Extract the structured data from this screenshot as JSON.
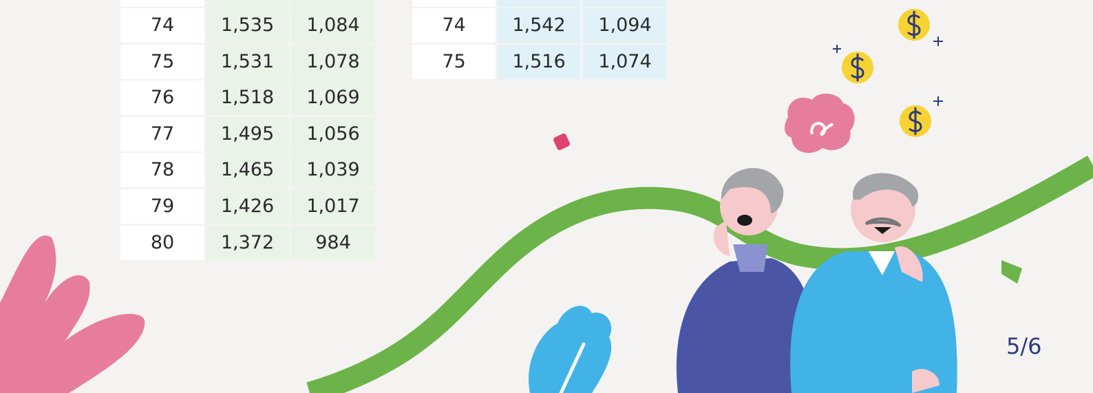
{
  "left_table": {
    "rows": [
      [
        "74",
        "1,535",
        "1,084"
      ],
      [
        "75",
        "1,531",
        "1,078"
      ],
      [
        "76",
        "1,518",
        "1,069"
      ],
      [
        "77",
        "1,495",
        "1,056"
      ],
      [
        "78",
        "1,465",
        "1,039"
      ],
      [
        "79",
        "1,426",
        "1,017"
      ],
      [
        "80",
        "1,372",
        "984"
      ]
    ]
  },
  "right_table": {
    "rows": [
      [
        "74",
        "1,542",
        "1,094"
      ],
      [
        "75",
        "1,516",
        "1,074"
      ]
    ]
  },
  "page_number": "5/6"
}
